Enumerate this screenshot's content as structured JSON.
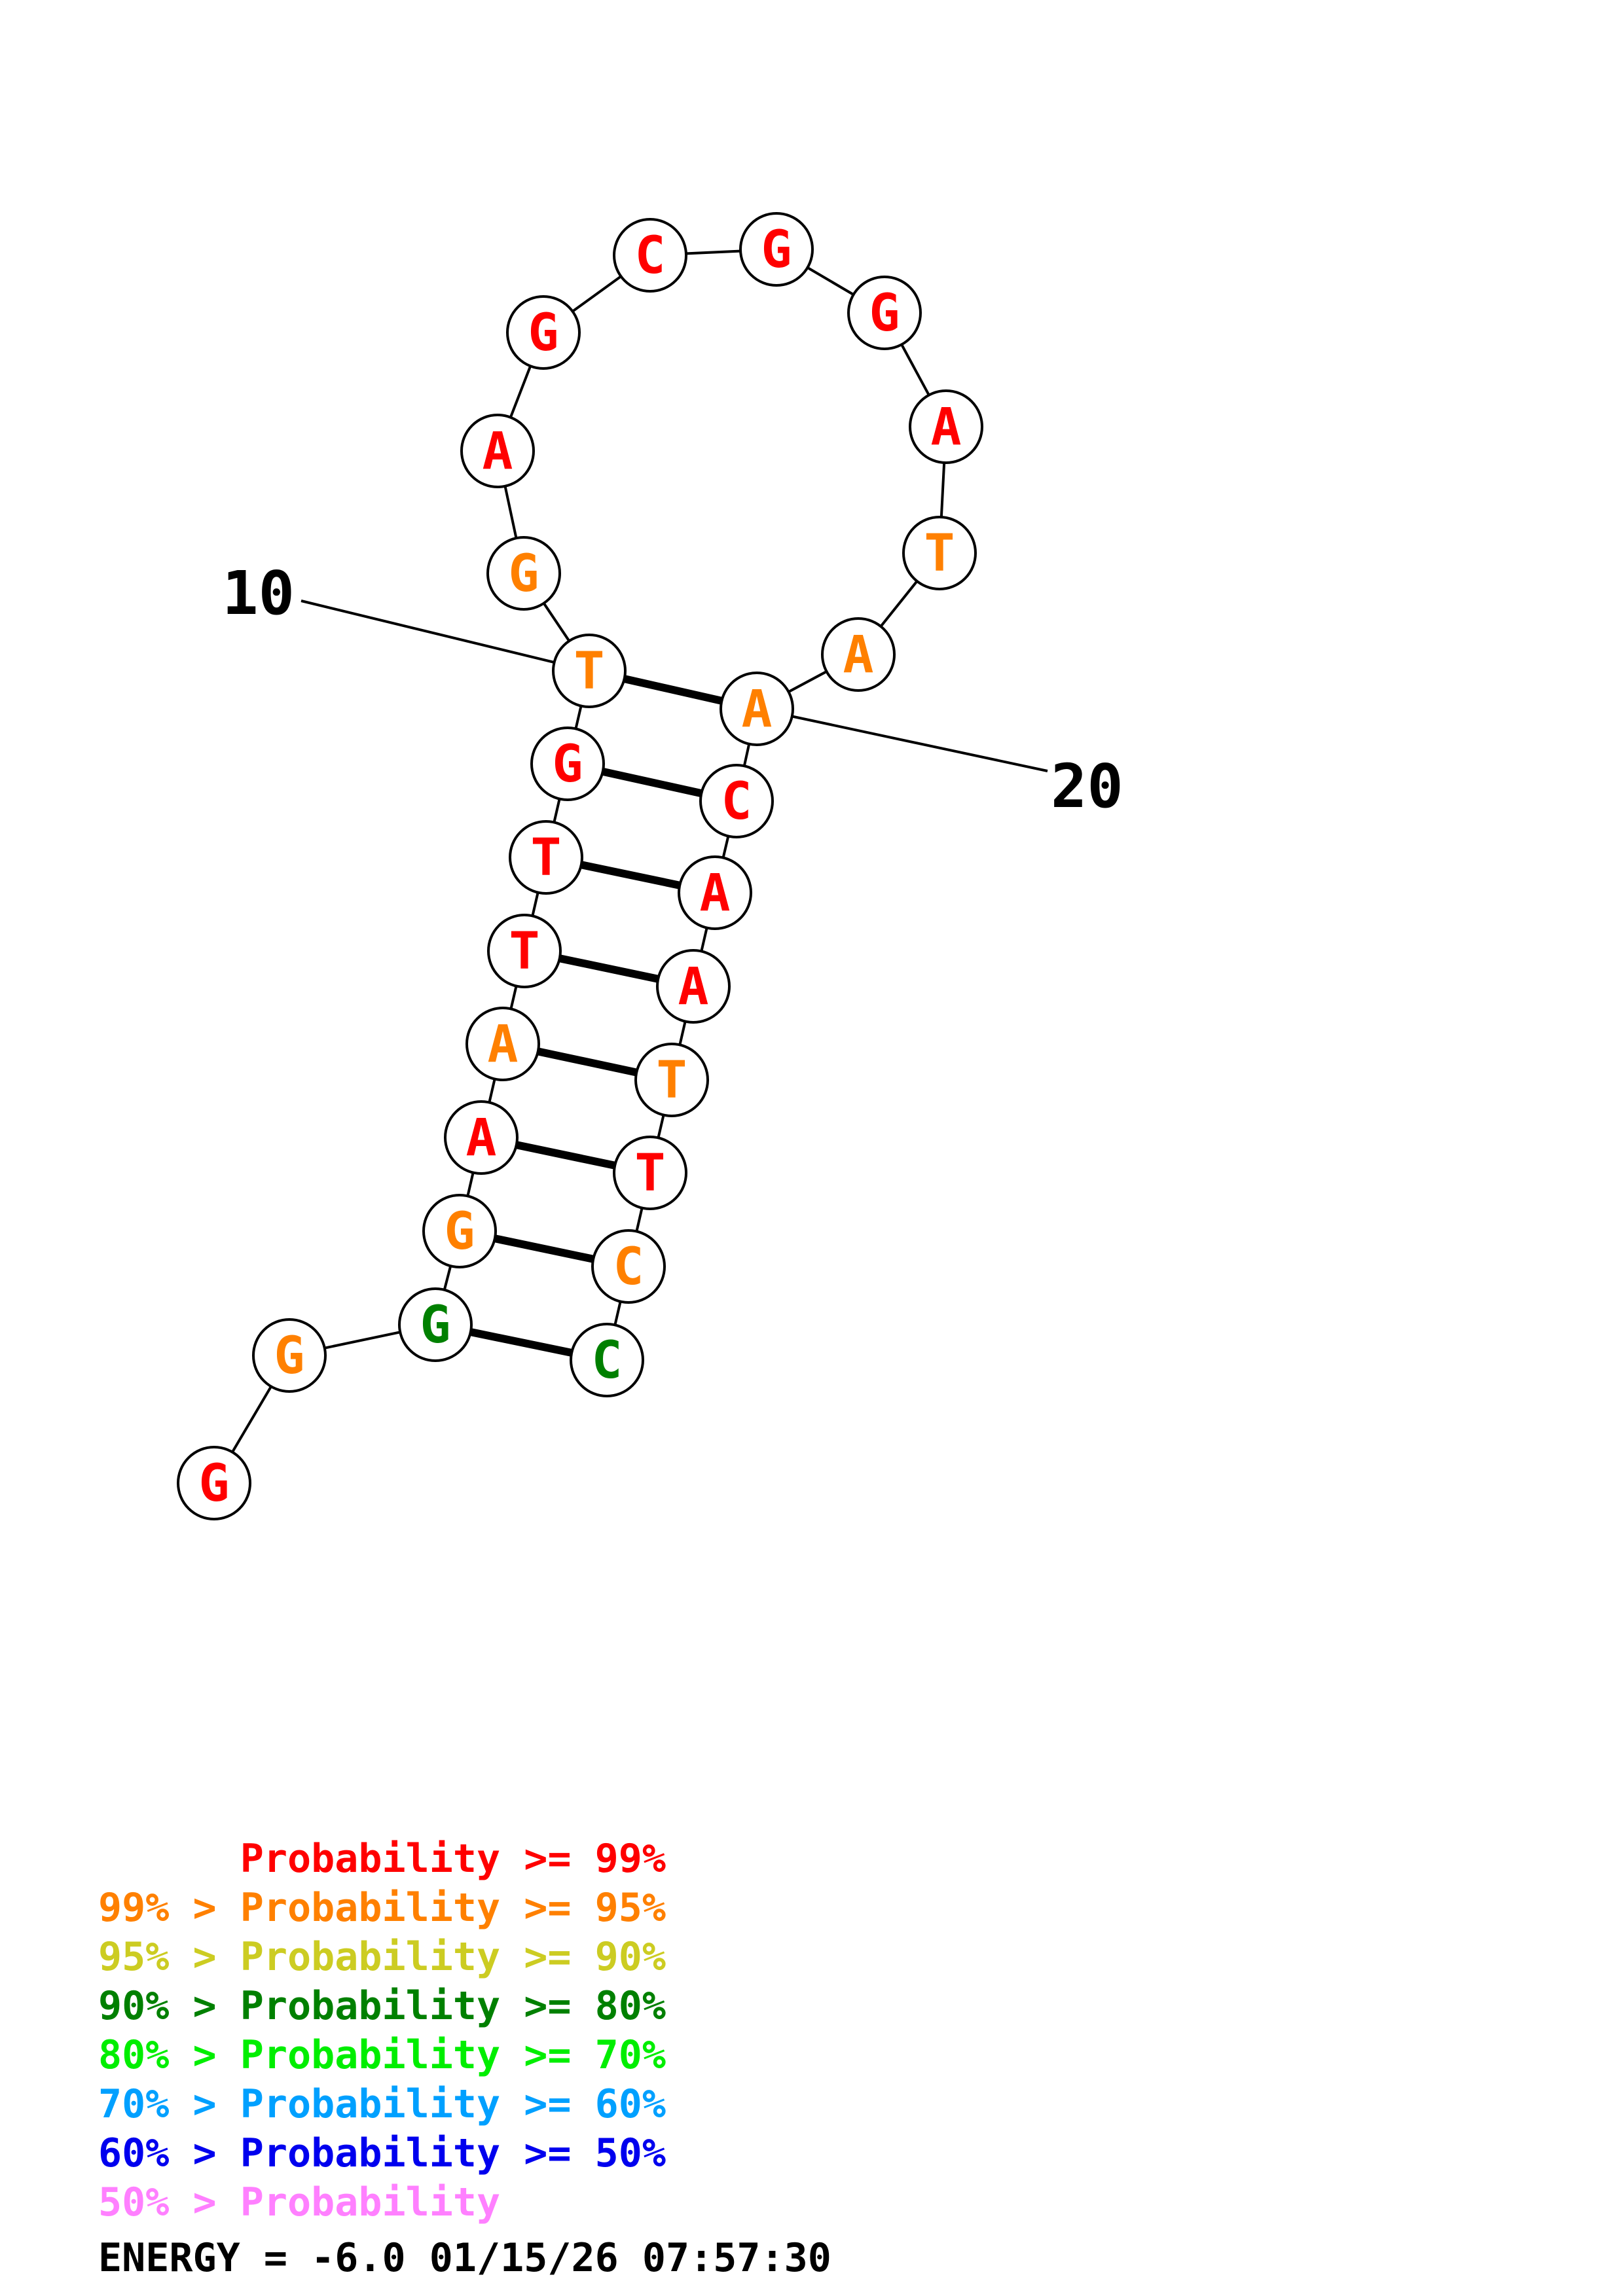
{
  "colors": {
    "p99": "#ff0000",
    "p95": "#ff8000",
    "p90": "#cccc22",
    "p80": "#008000",
    "p70": "#00ee00",
    "p60": "#00a0ff",
    "p50": "#0000ee",
    "plow": "#ff80ff"
  },
  "structure": {
    "nucleotides": [
      {
        "base": "G",
        "prob": "p99"
      },
      {
        "base": "G",
        "prob": "p95"
      },
      {
        "base": "G",
        "prob": "p80"
      },
      {
        "base": "G",
        "prob": "p95"
      },
      {
        "base": "A",
        "prob": "p99"
      },
      {
        "base": "A",
        "prob": "p95"
      },
      {
        "base": "T",
        "prob": "p99"
      },
      {
        "base": "T",
        "prob": "p99"
      },
      {
        "base": "G",
        "prob": "p99"
      },
      {
        "base": "T",
        "prob": "p95"
      },
      {
        "base": "G",
        "prob": "p95"
      },
      {
        "base": "A",
        "prob": "p99"
      },
      {
        "base": "G",
        "prob": "p99"
      },
      {
        "base": "C",
        "prob": "p99"
      },
      {
        "base": "G",
        "prob": "p99"
      },
      {
        "base": "G",
        "prob": "p99"
      },
      {
        "base": "A",
        "prob": "p99"
      },
      {
        "base": "T",
        "prob": "p95"
      },
      {
        "base": "A",
        "prob": "p95"
      },
      {
        "base": "A",
        "prob": "p95"
      },
      {
        "base": "C",
        "prob": "p99"
      },
      {
        "base": "A",
        "prob": "p99"
      },
      {
        "base": "A",
        "prob": "p99"
      },
      {
        "base": "T",
        "prob": "p95"
      },
      {
        "base": "T",
        "prob": "p99"
      },
      {
        "base": "C",
        "prob": "p95"
      },
      {
        "base": "C",
        "prob": "p80"
      }
    ],
    "pairs": [
      [
        3,
        27
      ],
      [
        4,
        26
      ],
      [
        5,
        25
      ],
      [
        6,
        24
      ],
      [
        7,
        23
      ],
      [
        8,
        22
      ],
      [
        9,
        21
      ],
      [
        10,
        20
      ]
    ],
    "position_labels": [
      {
        "nucleotide": 10,
        "text": "10"
      },
      {
        "nucleotide": 20,
        "text": "20"
      }
    ]
  },
  "legend": [
    {
      "prefix": "",
      "text": "Probability >= 99%",
      "color": "p99"
    },
    {
      "prefix": "99% > ",
      "text": "Probability >= 95%",
      "color": "p95"
    },
    {
      "prefix": "95% > ",
      "text": "Probability >= 90%",
      "color": "p90"
    },
    {
      "prefix": "90% > ",
      "text": "Probability >= 80%",
      "color": "p80"
    },
    {
      "prefix": "80% > ",
      "text": "Probability >= 70%",
      "color": "p70"
    },
    {
      "prefix": "70% > ",
      "text": "Probability >= 60%",
      "color": "p60"
    },
    {
      "prefix": "60% > ",
      "text": "Probability >= 50%",
      "color": "p50"
    },
    {
      "prefix": "50% > ",
      "text": "Probability",
      "color": "plow"
    }
  ],
  "footer": {
    "energy": "ENERGY = -6.0",
    "timestamp": "01/15/26 07:57:30"
  }
}
